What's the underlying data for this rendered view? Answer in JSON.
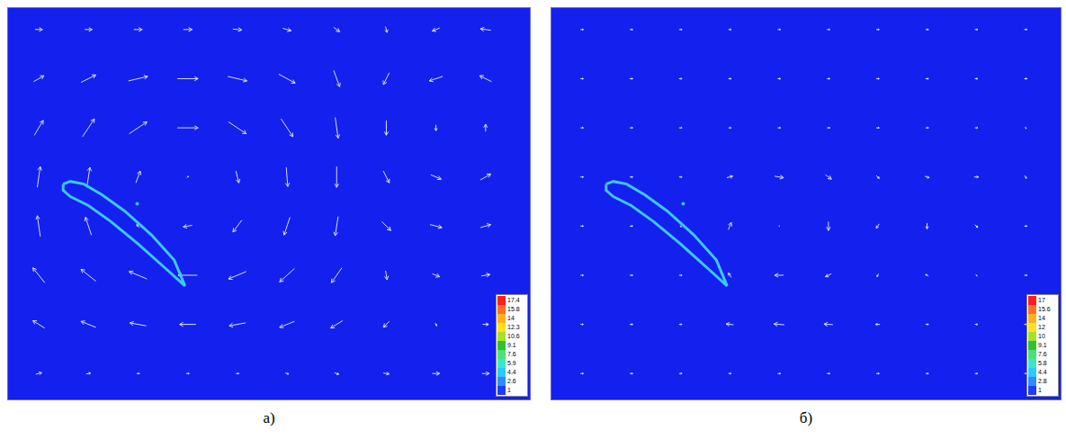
{
  "chart_data": [
    {
      "type": "vector_field",
      "caption": "а)",
      "tick_labels": false,
      "color": "#d8ddf2",
      "xlim": [
        0,
        580
      ],
      "ylim": [
        0,
        440
      ],
      "x": [
        35,
        90,
        145,
        200,
        255,
        310,
        365,
        420,
        475,
        530
      ],
      "y": [
        30,
        85,
        140,
        195,
        250,
        305,
        360,
        415
      ],
      "u": [
        [
          2,
          1.5,
          1,
          1,
          1,
          1.2,
          1.5,
          2,
          2.5,
          2.5
        ],
        [
          -4,
          -5,
          -5.5,
          -5.5,
          -5.5,
          -5,
          -4,
          -2,
          0.5,
          2
        ],
        [
          -4,
          -5,
          -6,
          -6.5,
          -6,
          -5,
          -3.5,
          0.5,
          2.5,
          3
        ],
        [
          -1,
          -2,
          -1,
          -3,
          -3,
          -2,
          -1,
          3,
          4,
          3.5
        ],
        [
          1,
          1,
          1.5,
          0.5,
          1,
          0.5,
          0,
          2,
          3.5,
          3.5
        ],
        [
          3,
          4,
          6,
          7,
          6,
          4,
          1,
          0,
          0,
          0
        ],
        [
          3.5,
          5,
          6.5,
          7,
          6.5,
          5.5,
          2,
          -2,
          -4.5,
          -4
        ],
        [
          2.5,
          2.5,
          2.8,
          3,
          3,
          2.8,
          2,
          0.5,
          -2.5,
          -3.5
        ]
      ],
      "v": [
        [
          0.5,
          0.3,
          0,
          0,
          0,
          -0.3,
          -0.5,
          -0.3,
          0,
          0
        ],
        [
          2.5,
          2,
          1,
          0,
          -1,
          -2,
          -2.5,
          -2,
          -1,
          0
        ],
        [
          5,
          4,
          2.5,
          0,
          -2.5,
          -4.5,
          -5,
          -3,
          -1,
          0.5
        ],
        [
          7,
          6,
          1,
          -0.5,
          -4,
          -6,
          -6.5,
          -3,
          -1,
          1
        ],
        [
          7,
          6.5,
          4,
          0.5,
          -4,
          -6.5,
          -7,
          -4,
          -1.5,
          2
        ],
        [
          5,
          6,
          4,
          0,
          -4,
          -6,
          -7,
          -5,
          -2,
          2.5
        ],
        [
          2,
          2.5,
          1.5,
          0,
          -1.5,
          -3,
          -5.5,
          -4,
          -1.5,
          2
        ],
        [
          0,
          0,
          0,
          0,
          -0.3,
          -0.8,
          -1.5,
          -2,
          -1,
          0.5
        ]
      ],
      "airfoil": {
        "x": [
          62,
          70,
          85,
          105,
          130,
          160,
          185,
          197,
          175,
          145,
          115,
          90,
          70,
          62,
          62
        ],
        "y": [
          242,
          245,
          242,
          230,
          212,
          185,
          157,
          128,
          148,
          175,
          200,
          218,
          228,
          235,
          242
        ]
      },
      "point": {
        "x": 144,
        "y": 220
      },
      "colorbar": {
        "ticks": [
          1,
          2.6,
          4.4,
          5.9,
          7.6,
          9.1,
          10.6,
          12.3,
          14,
          15.8,
          17.4
        ],
        "colors": [
          "#1e3cff",
          "#2f8cff",
          "#2cc8ff",
          "#39e6c8",
          "#4ce07a",
          "#30c030",
          "#a6e22a",
          "#ffe020",
          "#ffb020",
          "#ff7020",
          "#ff1e1e"
        ]
      }
    },
    {
      "type": "vector_field",
      "caption": "б)",
      "tick_labels": false,
      "color": "#d8ddf2",
      "xlim": [
        0,
        570
      ],
      "ylim": [
        0,
        440
      ],
      "x": [
        35,
        90,
        145,
        200,
        255,
        310,
        365,
        420,
        475,
        530
      ],
      "y": [
        30,
        85,
        140,
        195,
        250,
        305,
        360,
        415
      ],
      "u": [
        [
          1,
          1,
          1,
          1,
          1,
          1,
          1,
          1,
          1,
          1
        ],
        [
          1,
          1,
          1,
          -2.5,
          -3.5,
          -3,
          -1.5,
          1,
          1,
          1
        ],
        [
          1,
          1,
          1,
          -1,
          -3,
          -2,
          -0.5,
          -1,
          0.5,
          1
        ],
        [
          1,
          1,
          0.5,
          1,
          0.3,
          0,
          -1,
          0,
          1,
          1
        ],
        [
          1,
          1,
          1,
          2,
          3,
          2,
          1,
          1.5,
          1.5,
          0.5
        ],
        [
          1,
          1,
          1,
          1,
          1,
          1,
          1,
          1,
          1,
          0.5
        ],
        [
          1,
          1,
          1,
          1,
          1,
          1,
          1,
          1,
          1,
          1
        ],
        [
          1,
          1,
          1,
          1,
          1,
          1,
          1,
          1,
          1,
          1
        ]
      ],
      "v": [
        [
          0,
          0,
          0,
          0,
          0,
          0,
          0,
          0,
          0,
          0
        ],
        [
          0,
          0,
          0,
          0.3,
          0.3,
          0.2,
          0,
          0,
          0,
          0
        ],
        [
          0,
          0,
          0,
          1.5,
          0,
          -1,
          -1,
          0.5,
          -0.5,
          0
        ],
        [
          0,
          0,
          -0.5,
          2.5,
          0,
          -3,
          -1.5,
          -2,
          -1,
          0
        ],
        [
          0,
          0,
          0,
          0.5,
          -0.5,
          -1.5,
          -1,
          -0.5,
          0,
          -1
        ],
        [
          0,
          0,
          0,
          0,
          0,
          0,
          0,
          0,
          0,
          -0.5
        ],
        [
          0,
          0,
          0,
          0,
          0,
          0,
          0,
          0,
          0,
          0
        ],
        [
          0,
          0,
          0,
          0,
          0,
          0,
          0,
          0,
          0,
          0
        ]
      ],
      "airfoil": {
        "x": [
          62,
          70,
          85,
          105,
          130,
          160,
          185,
          197,
          175,
          145,
          115,
          90,
          70,
          62,
          62
        ],
        "y": [
          242,
          245,
          242,
          230,
          212,
          185,
          157,
          128,
          148,
          175,
          200,
          218,
          228,
          235,
          242
        ]
      },
      "point": {
        "x": 148,
        "y": 220
      },
      "colorbar": {
        "ticks": [
          1,
          2.8,
          4.4,
          5.8,
          7.6,
          9.1,
          10,
          12,
          14,
          15.6,
          17
        ],
        "colors": [
          "#1e3cff",
          "#2f8cff",
          "#2cc8ff",
          "#39e6c8",
          "#4ce07a",
          "#30c030",
          "#a6e22a",
          "#ffe020",
          "#ffb020",
          "#ff7020",
          "#ff1e1e"
        ]
      }
    }
  ]
}
